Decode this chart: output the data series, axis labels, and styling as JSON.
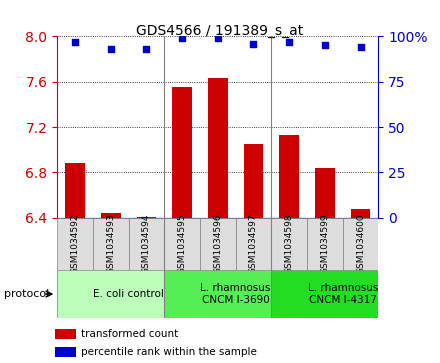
{
  "title": "GDS4566 / 191389_s_at",
  "samples": [
    "GSM1034592",
    "GSM1034593",
    "GSM1034594",
    "GSM1034595",
    "GSM1034596",
    "GSM1034597",
    "GSM1034598",
    "GSM1034599",
    "GSM1034600"
  ],
  "bar_values": [
    6.88,
    6.44,
    6.41,
    7.55,
    7.63,
    7.05,
    7.13,
    6.84,
    6.48
  ],
  "percentile_values": [
    97,
    93,
    93,
    99,
    99,
    96,
    97,
    95,
    94
  ],
  "bar_color": "#cc0000",
  "dot_color": "#0000cc",
  "ylim_left": [
    6.4,
    8.0
  ],
  "ylim_right": [
    0,
    100
  ],
  "yticks_left": [
    6.4,
    6.8,
    7.2,
    7.6,
    8.0
  ],
  "yticks_right": [
    0,
    25,
    50,
    75,
    100
  ],
  "groups": [
    {
      "label": "E. coli control",
      "start": 0,
      "end": 3,
      "color": "#bbffbb"
    },
    {
      "label": "L. rhamnosus\nCNCM I-3690",
      "start": 3,
      "end": 6,
      "color": "#55ee55"
    },
    {
      "label": "L. rhamnosus\nCNCM I-4317",
      "start": 6,
      "end": 9,
      "color": "#22dd22"
    }
  ],
  "sample_box_color": "#dddddd",
  "legend_bar_label": "transformed count",
  "legend_dot_label": "percentile rank within the sample",
  "protocol_label": "protocol",
  "tick_label_color_left": "#cc0000",
  "tick_label_color_right": "#0000cc"
}
